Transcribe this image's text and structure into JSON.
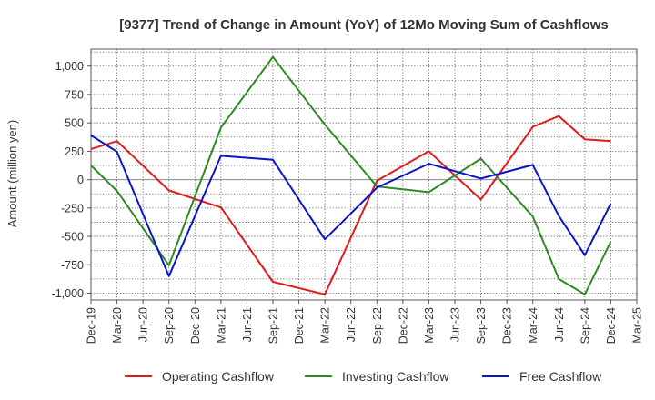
{
  "chart_data": {
    "type": "line",
    "title": "[9377]  Trend of Change in Amount (YoY) of 12Mo Moving Sum of Cashflows",
    "xlabel": "",
    "ylabel": "Amount (million yen)",
    "ylim": [
      -1060,
      1150
    ],
    "yticks": [
      1000,
      750,
      500,
      250,
      0,
      -250,
      -500,
      -750,
      -1000
    ],
    "ytick_labels": [
      "1,000",
      "750",
      "500",
      "250",
      "0",
      "-250",
      "-500",
      "-750",
      "-1,000"
    ],
    "x": [
      "Dec-19",
      "Mar-20",
      "Jun-20",
      "Sep-20",
      "Dec-20",
      "Mar-21",
      "Jun-21",
      "Sep-21",
      "Dec-21",
      "Mar-22",
      "Jun-22",
      "Sep-22",
      "Dec-22",
      "Mar-23",
      "Jun-23",
      "Sep-23",
      "Dec-23",
      "Mar-24",
      "Jun-24",
      "Sep-24",
      "Dec-24",
      "Mar-25"
    ],
    "grid": true,
    "legend_position": "bottom",
    "series": [
      {
        "name": "Operating Cashflow",
        "color": "#e31a1c",
        "values": [
          270,
          340,
          null,
          -95,
          null,
          -245,
          null,
          -900,
          null,
          -1010,
          null,
          -10,
          null,
          250,
          null,
          -175,
          null,
          465,
          560,
          355,
          340,
          null
        ]
      },
      {
        "name": "Investing Cashflow",
        "color": "#2e8b22",
        "values": [
          125,
          -100,
          null,
          -755,
          null,
          460,
          null,
          1080,
          null,
          485,
          null,
          -60,
          null,
          -110,
          null,
          185,
          null,
          -325,
          -875,
          -1010,
          -545,
          null
        ]
      },
      {
        "name": "Free Cashflow",
        "color": "#0a14c8",
        "values": [
          390,
          245,
          null,
          -850,
          null,
          210,
          null,
          175,
          null,
          -525,
          null,
          -70,
          null,
          140,
          null,
          10,
          null,
          130,
          -320,
          -665,
          -210,
          null
        ]
      }
    ]
  }
}
